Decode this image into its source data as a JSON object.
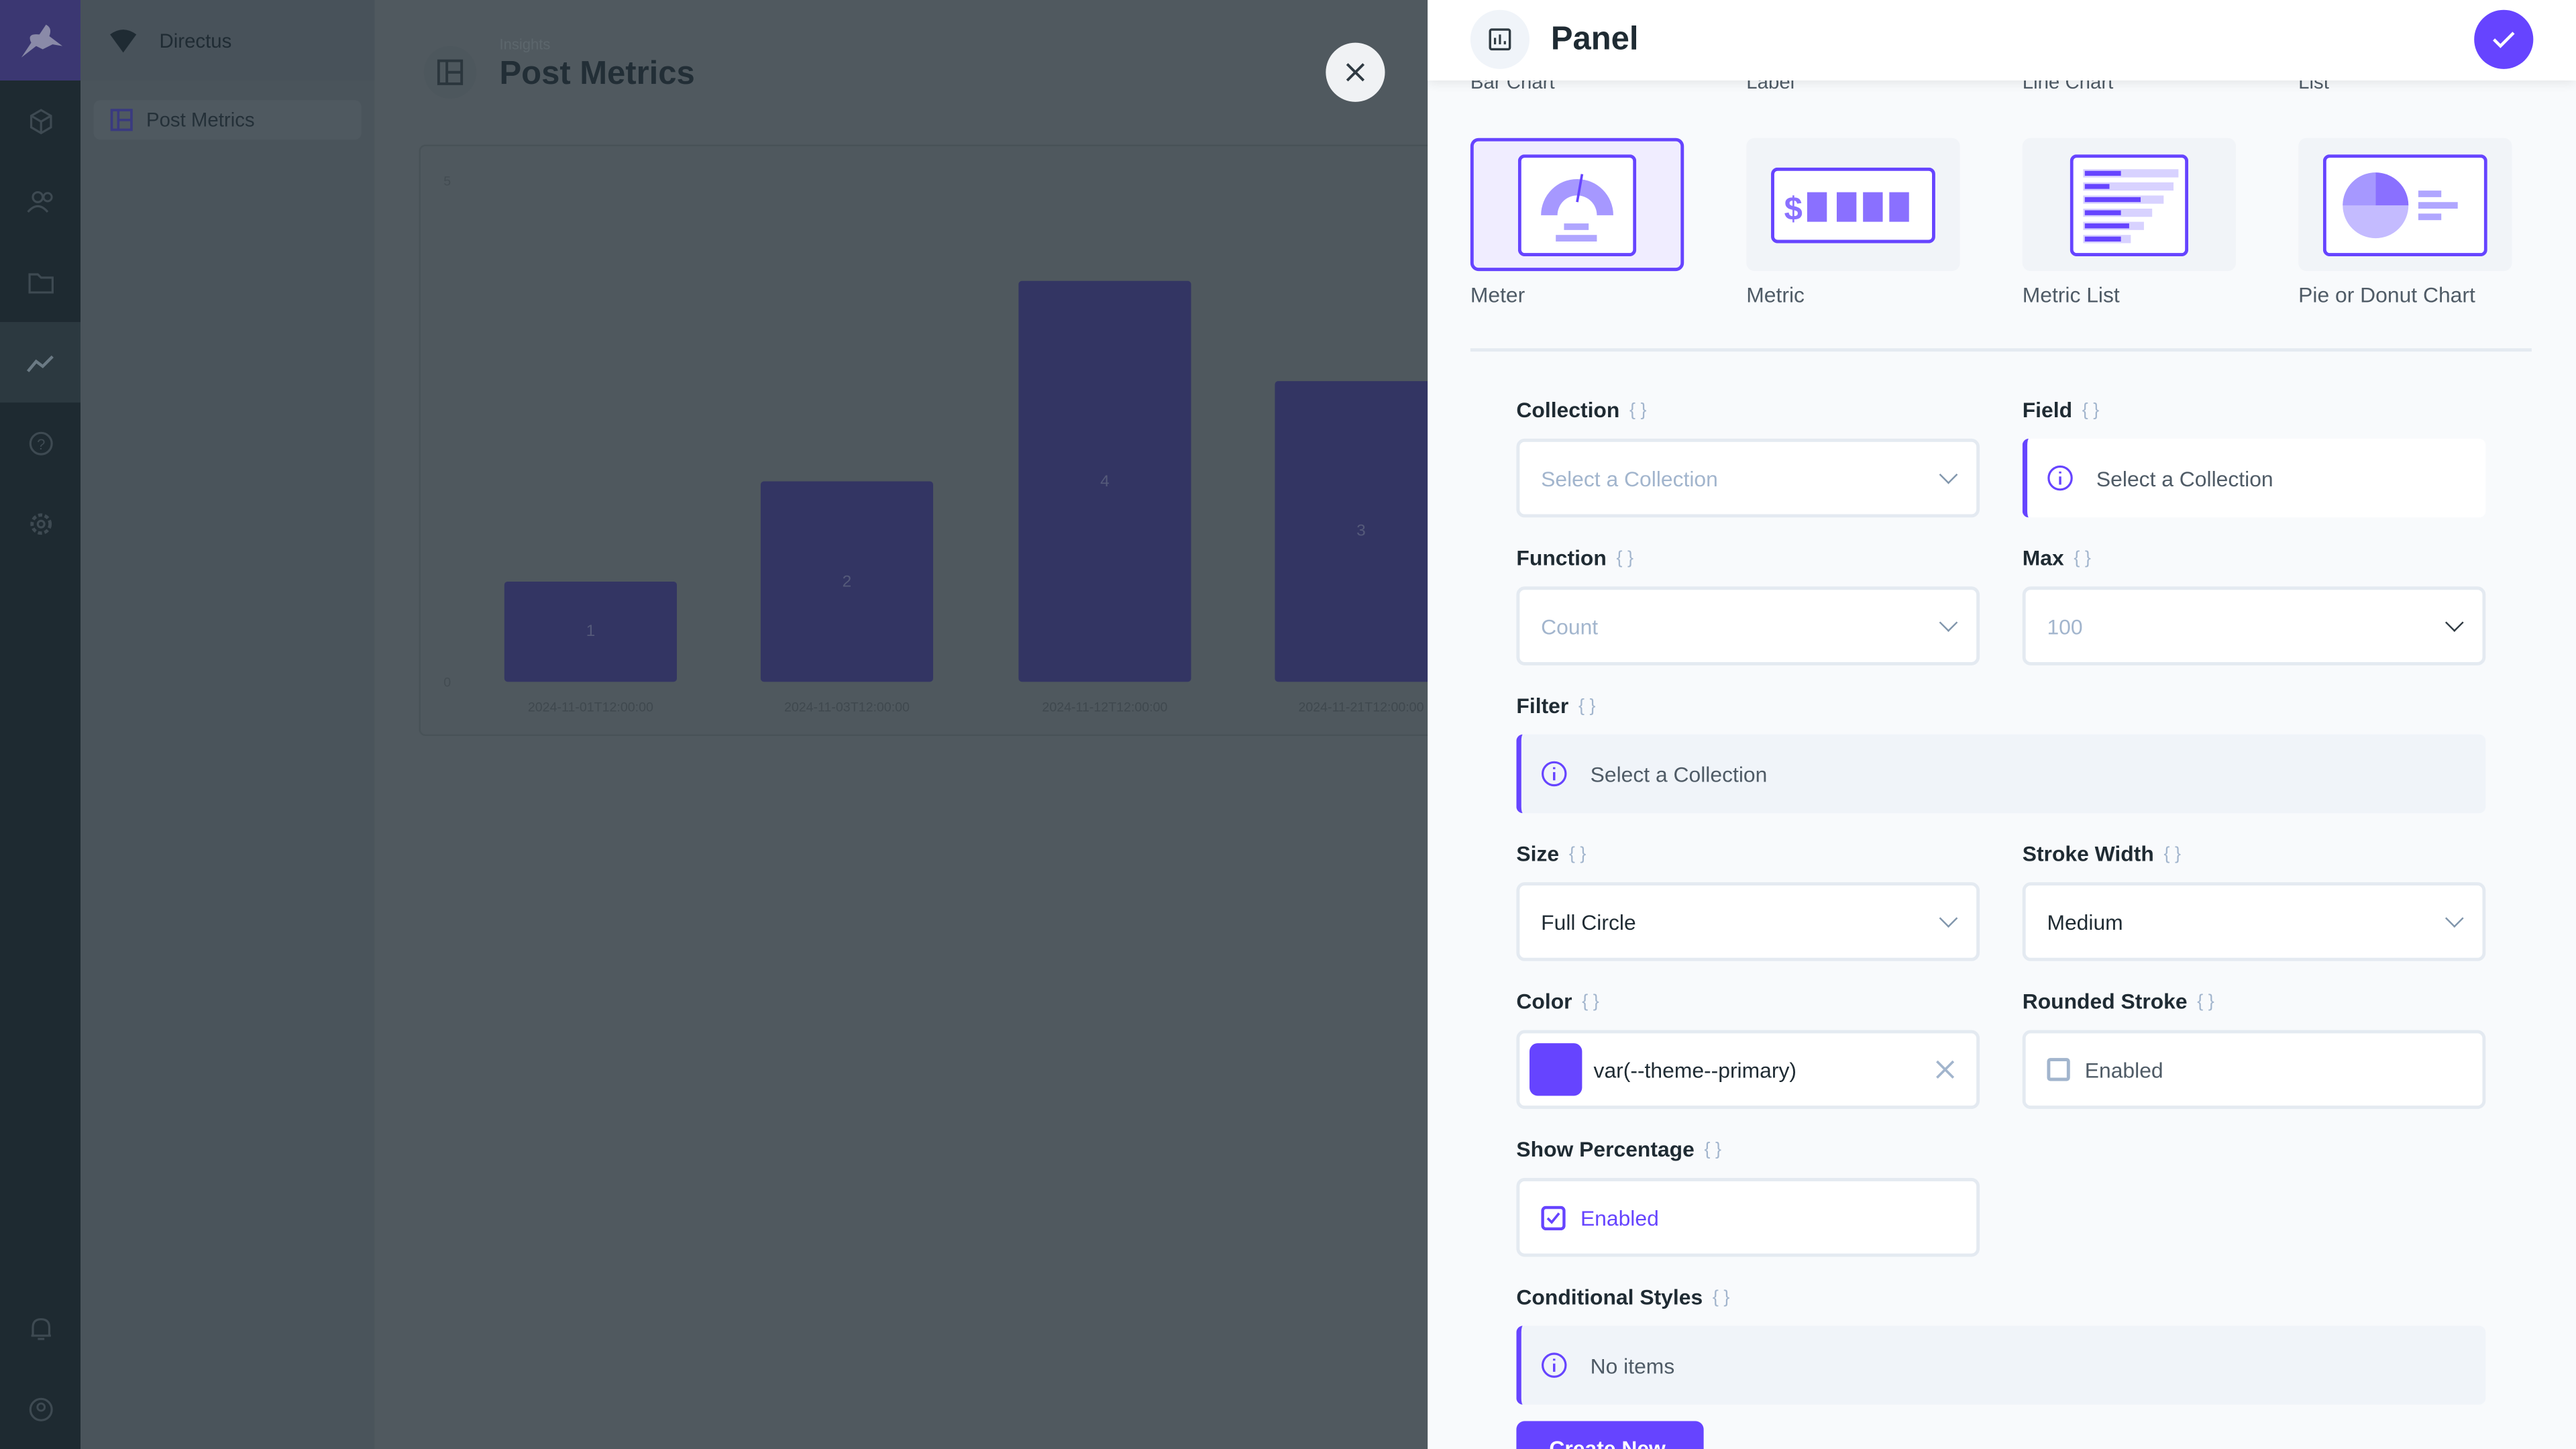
{
  "sidebar": {
    "project": "Directus",
    "items": [
      {
        "label": "Post Metrics"
      }
    ],
    "rail_icons": [
      "box-icon",
      "users-icon",
      "folder-icon",
      "insights-icon",
      "help-icon",
      "settings-icon",
      "bell-icon",
      "user-icon"
    ]
  },
  "header": {
    "breadcrumb": "Insights",
    "title": "Post Metrics"
  },
  "chart_data": {
    "type": "bar",
    "categories": [
      "2024-11-01T12:00:00",
      "2024-11-03T12:00:00",
      "2024-11-12T12:00:00",
      "2024-11-21T12:00:00"
    ],
    "values": [
      1,
      2,
      4,
      3
    ],
    "ylim": [
      0,
      5
    ],
    "yticks": [
      "0",
      "5"
    ],
    "color": "#6644ff"
  },
  "drawer": {
    "title": "Panel",
    "types_top": [
      "Bar Chart",
      "Label",
      "Line Chart",
      "List"
    ],
    "types": [
      {
        "label": "Meter",
        "selected": true
      },
      {
        "label": "Metric"
      },
      {
        "label": "Metric List"
      },
      {
        "label": "Pie or Donut Chart"
      }
    ],
    "fields": {
      "collection": {
        "label": "Collection",
        "placeholder": "Select a Collection"
      },
      "field": {
        "label": "Field",
        "notice": "Select a Collection"
      },
      "function": {
        "label": "Function",
        "value": "Count"
      },
      "max": {
        "label": "Max",
        "placeholder": "100"
      },
      "filter": {
        "label": "Filter",
        "notice": "Select a Collection"
      },
      "size": {
        "label": "Size",
        "value": "Full Circle"
      },
      "stroke_width": {
        "label": "Stroke Width",
        "value": "Medium"
      },
      "color": {
        "label": "Color",
        "value": "var(--theme--primary)",
        "swatch": "#6644ff"
      },
      "rounded_stroke": {
        "label": "Rounded Stroke",
        "option": "Enabled",
        "checked": false
      },
      "show_percentage": {
        "label": "Show Percentage",
        "option": "Enabled",
        "checked": true
      },
      "conditional_styles": {
        "label": "Conditional Styles",
        "notice": "No items",
        "button": "Create New"
      }
    }
  },
  "colors": {
    "primary": "#6644ff"
  }
}
